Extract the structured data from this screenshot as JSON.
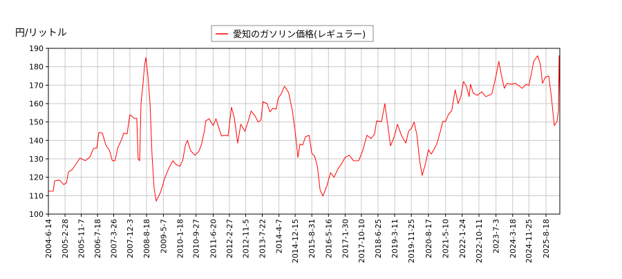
{
  "chart_data": {
    "type": "line",
    "title": "",
    "ylabel": "円/リットル",
    "xlabel": "",
    "ylim": [
      100,
      190
    ],
    "yticks": [
      100,
      110,
      120,
      130,
      140,
      150,
      160,
      170,
      180,
      190
    ],
    "xlim": [
      "2004-06-14",
      "2026-03-21"
    ],
    "xticks": [
      "2004-6-14",
      "2005-2-28",
      "2005-11-7",
      "2006-7-18",
      "2007-3-26",
      "2007-12-3",
      "2008-8-18",
      "2009-5-7",
      "2010-1-18",
      "2010-9-27",
      "2011-6-20",
      "2012-2-27",
      "2012-11-5",
      "2013-7-22",
      "2014-4-7",
      "2014-12-15",
      "2015-8-31",
      "2016-5-16",
      "2017-1-30",
      "2017-10-10",
      "2018-6-25",
      "2019-3-11",
      "2019-11-25",
      "2020-8-17",
      "2021-5-10",
      "2022-1-24",
      "2022-10-11",
      "2023-7-3",
      "2024-3-18",
      "2024-11-25",
      "2025-8-18"
    ],
    "grid": true,
    "legend_position": "top-center",
    "series": [
      {
        "name": "愛知のガソリン価格(レギュラー)",
        "color": "#ff0000",
        "x": [
          "2004-06-14",
          "2004-08-28",
          "2004-09-19",
          "2004-12-03",
          "2005-02-07",
          "2005-03-21",
          "2005-04-23",
          "2005-06-15",
          "2005-08-13",
          "2005-10-17",
          "2006-01-10",
          "2006-03-22",
          "2006-05-15",
          "2006-07-07",
          "2006-08-08",
          "2006-10-01",
          "2006-11-24",
          "2007-01-21",
          "2007-03-05",
          "2007-04-16",
          "2007-05-29",
          "2007-08-02",
          "2007-08-28",
          "2007-10-21",
          "2007-12-03",
          "2008-02-05",
          "2008-03-19",
          "2008-04-10",
          "2008-05-03",
          "2008-05-24",
          "2008-06-25",
          "2008-07-17",
          "2008-08-07",
          "2008-09-08",
          "2008-10-11",
          "2008-11-12",
          "2008-12-14",
          "2009-01-15",
          "2009-03-25",
          "2009-05-28",
          "2009-08-01",
          "2009-10-03",
          "2009-11-15",
          "2010-01-18",
          "2010-03-02",
          "2010-04-14",
          "2010-05-16",
          "2010-07-03",
          "2010-09-06",
          "2010-11-09",
          "2010-12-22",
          "2011-02-03",
          "2011-02-24",
          "2011-04-17",
          "2011-06-20",
          "2011-08-02",
          "2011-09-14",
          "2011-10-27",
          "2011-12-25",
          "2012-02-06",
          "2012-03-30",
          "2012-05-12",
          "2012-07-05",
          "2012-08-22",
          "2012-10-25",
          "2012-12-07",
          "2013-01-30",
          "2013-04-06",
          "2013-05-19",
          "2013-07-01",
          "2013-08-02",
          "2013-10-05",
          "2013-11-17",
          "2014-01-01",
          "2014-02-23",
          "2014-03-27",
          "2014-05-09",
          "2014-07-02",
          "2014-09-04",
          "2014-11-02",
          "2014-12-15",
          "2015-01-27",
          "2015-02-28",
          "2015-04-12",
          "2015-05-26",
          "2015-07-19",
          "2015-08-31",
          "2015-10-13",
          "2015-11-25",
          "2016-01-07",
          "2016-02-20",
          "2016-04-25",
          "2016-06-17",
          "2016-08-10",
          "2016-10-15",
          "2016-12-07",
          "2017-01-30",
          "2017-04-04",
          "2017-06-08",
          "2017-08-28",
          "2017-10-31",
          "2018-01-04",
          "2018-03-10",
          "2018-05-02",
          "2018-06-04",
          "2018-08-18",
          "2018-10-10",
          "2018-11-22",
          "2019-01-06",
          "2019-03-11",
          "2019-04-23",
          "2019-06-28",
          "2019-08-31",
          "2019-10-13",
          "2019-11-25",
          "2020-01-07",
          "2020-02-19",
          "2020-04-02",
          "2020-05-12",
          "2020-07-05",
          "2020-08-17",
          "2020-09-29",
          "2020-11-11",
          "2020-12-24",
          "2021-02-13",
          "2021-03-28",
          "2021-05-10",
          "2021-06-22",
          "2021-08-15",
          "2021-10-07",
          "2021-11-21",
          "2022-01-03",
          "2022-02-14",
          "2022-03-29",
          "2022-05-11",
          "2022-06-02",
          "2022-07-15",
          "2022-09-20",
          "2022-11-23",
          "2023-01-26",
          "2023-04-30",
          "2023-07-03",
          "2023-08-15",
          "2023-09-27",
          "2023-11-09",
          "2023-12-23",
          "2024-02-26",
          "2024-04-30",
          "2024-07-03",
          "2024-08-15",
          "2024-10-13",
          "2024-11-25",
          "2025-01-07",
          "2025-02-08",
          "2025-04-11",
          "2025-05-24",
          "2025-06-25",
          "2025-08-07",
          "2025-09-30",
          "2025-11-12",
          "2025-12-25",
          "2026-02-06",
          "2026-02-27",
          "2026-03-10",
          "2026-03-21"
        ],
        "y": [
          112.4,
          112.5,
          118,
          118.5,
          116,
          117,
          123,
          124,
          127,
          130.4,
          129,
          131,
          135.6,
          136,
          144.3,
          144,
          137.5,
          134.5,
          129,
          129,
          136,
          141,
          144,
          143.5,
          154,
          152,
          152,
          130,
          129,
          160,
          171,
          180.6,
          185,
          175,
          160,
          132,
          114,
          107,
          112,
          119.5,
          125,
          129,
          127,
          126,
          129,
          137.5,
          140,
          134.5,
          132,
          134,
          138,
          145,
          150.6,
          151.8,
          148,
          151.8,
          147,
          142.4,
          142.8,
          142.4,
          158,
          152.5,
          138.6,
          148.8,
          145,
          149.5,
          156,
          153,
          150,
          151,
          161,
          160,
          155.5,
          157.4,
          157,
          163,
          165,
          169.4,
          166,
          156,
          145,
          130.8,
          138,
          137.5,
          142,
          142.8,
          133,
          131.5,
          126,
          113,
          109.8,
          115.8,
          122.5,
          120,
          124.8,
          127.4,
          130.8,
          132,
          129,
          128.9,
          134.5,
          142.8,
          141,
          143.5,
          150.6,
          150.2,
          160,
          148.8,
          137,
          142.8,
          148.8,
          142.4,
          138.6,
          145,
          146.5,
          150,
          143,
          129,
          121,
          127.8,
          135,
          132.6,
          135,
          138,
          144.3,
          150.3,
          150.3,
          154,
          156.3,
          167.5,
          160,
          163.8,
          172,
          169.4,
          163.8,
          170.5,
          165.6,
          164.5,
          166.4,
          163.8,
          165.3,
          175,
          183,
          175,
          168.3,
          171,
          170.5,
          171,
          169.4,
          168.3,
          170.5,
          169.8,
          177,
          183,
          186,
          181,
          171,
          174.3,
          175,
          163,
          148,
          150.3,
          156,
          186,
          163.8
        ]
      }
    ]
  }
}
